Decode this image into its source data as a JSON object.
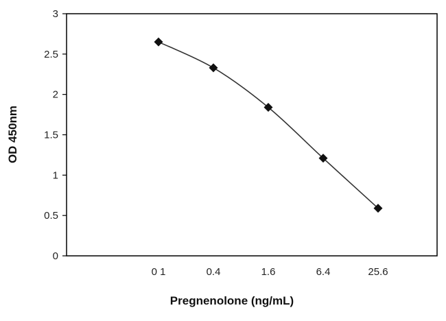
{
  "chart_data": {
    "type": "line",
    "title": "",
    "xlabel": "Pregnenolone (ng/mL)",
    "ylabel": "OD 450nm",
    "categories": [
      "0.1",
      "0.4",
      "1.6",
      "6.4",
      "25.6"
    ],
    "x_tick_labels": [
      "0 1",
      "0.4",
      "1.6",
      "6.4",
      "25.6"
    ],
    "values": [
      2.65,
      2.33,
      1.84,
      1.21,
      0.59
    ],
    "ylim": [
      0,
      3
    ],
    "y_ticks": [
      "0",
      "0.5",
      "1",
      "1.5",
      "2",
      "2.5",
      "3"
    ],
    "grid": false,
    "legend": "none",
    "marker": "diamond",
    "colors": {
      "line": "#333333",
      "marker": "#111111",
      "axis": "#000000"
    }
  }
}
